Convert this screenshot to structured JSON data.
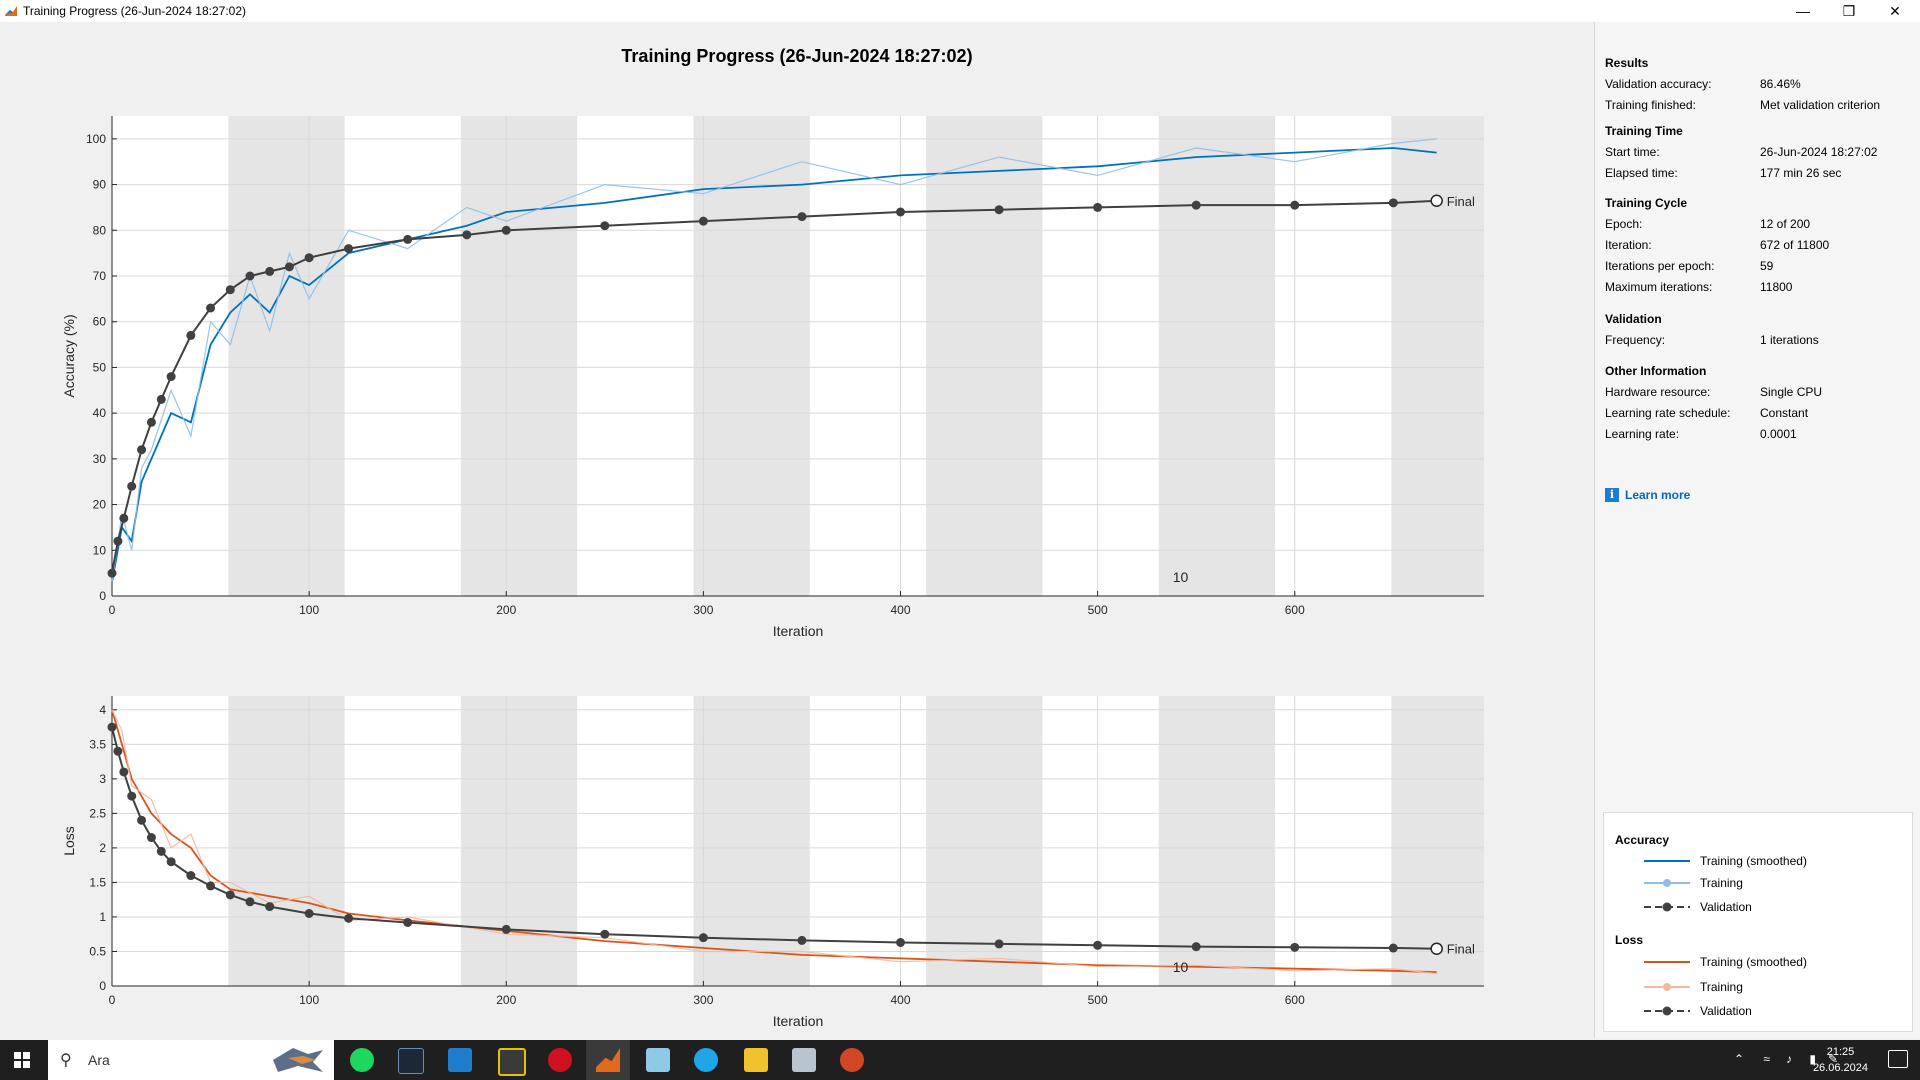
{
  "window": {
    "title": "Training Progress (26-Jun-2024 18:27:02)"
  },
  "figure_title": "Training Progress (26-Jun-2024 18:27:02)",
  "chart_data": [
    {
      "type": "line",
      "name": "accuracy",
      "title": "",
      "xlabel": "Iteration",
      "ylabel": "Accuracy (%)",
      "xlim": [
        0,
        696
      ],
      "ylim": [
        0,
        105
      ],
      "xticks": [
        0,
        100,
        200,
        300,
        400,
        500,
        600
      ],
      "yticks": [
        0,
        10,
        20,
        30,
        40,
        50,
        60,
        70,
        80,
        90,
        100
      ],
      "ytick_labels": [
        "0",
        "10",
        "20",
        "30",
        "40",
        "50",
        "60",
        "70",
        "80",
        "90",
        "100"
      ],
      "grid": true,
      "epoch_iterations": 59,
      "epoch_label": "10",
      "epoch_label_x": 538,
      "final_label": "Final",
      "series": [
        {
          "name": "Training (smoothed)",
          "color": "#0072bd",
          "x": [
            0,
            5,
            10,
            15,
            20,
            30,
            40,
            50,
            60,
            70,
            80,
            90,
            100,
            120,
            150,
            180,
            200,
            250,
            300,
            350,
            400,
            450,
            500,
            550,
            600,
            650,
            672
          ],
          "y": [
            3,
            15,
            12,
            25,
            30,
            40,
            38,
            55,
            62,
            66,
            62,
            70,
            68,
            75,
            78,
            81,
            84,
            86,
            89,
            90,
            92,
            93,
            94,
            96,
            97,
            98,
            97
          ]
        },
        {
          "name": "Training",
          "color": "#8fbfe6",
          "x": [
            0,
            5,
            10,
            15,
            20,
            30,
            40,
            50,
            60,
            70,
            80,
            90,
            100,
            120,
            150,
            180,
            200,
            250,
            300,
            350,
            400,
            450,
            500,
            550,
            600,
            650,
            672
          ],
          "y": [
            3,
            18,
            10,
            28,
            32,
            45,
            35,
            60,
            55,
            70,
            58,
            75,
            65,
            80,
            76,
            85,
            82,
            90,
            88,
            95,
            90,
            96,
            92,
            98,
            95,
            99,
            100
          ]
        },
        {
          "name": "Validation",
          "color": "#404040",
          "x": [
            0,
            3,
            6,
            10,
            15,
            20,
            25,
            30,
            40,
            50,
            60,
            70,
            80,
            90,
            100,
            120,
            150,
            180,
            200,
            250,
            300,
            350,
            400,
            450,
            500,
            550,
            600,
            650,
            672
          ],
          "y": [
            5,
            12,
            17,
            24,
            32,
            38,
            43,
            48,
            57,
            63,
            67,
            70,
            71,
            72,
            74,
            76,
            78,
            79,
            80,
            81,
            82,
            83,
            84,
            84.5,
            85,
            85.5,
            85.5,
            86,
            86.46
          ]
        }
      ]
    },
    {
      "type": "line",
      "name": "loss",
      "title": "",
      "xlabel": "Iteration",
      "ylabel": "Loss",
      "xlim": [
        0,
        696
      ],
      "ylim": [
        0,
        4.2
      ],
      "xticks": [
        0,
        100,
        200,
        300,
        400,
        500,
        600
      ],
      "yticks": [
        0,
        0.5,
        1,
        1.5,
        2,
        2.5,
        3,
        3.5,
        4
      ],
      "ytick_labels": [
        "0",
        "0.5",
        "1",
        "1.5",
        "2",
        "2.5",
        "3",
        "3.5",
        "4"
      ],
      "grid": true,
      "epoch_iterations": 59,
      "epoch_label": "10",
      "epoch_label_x": 538,
      "final_label": "Final",
      "series": [
        {
          "name": "Training (smoothed)",
          "color": "#d95319",
          "x": [
            0,
            5,
            10,
            20,
            30,
            40,
            50,
            60,
            80,
            100,
            120,
            150,
            200,
            250,
            300,
            350,
            400,
            450,
            500,
            550,
            600,
            650,
            672
          ],
          "y": [
            4.0,
            3.5,
            3.0,
            2.5,
            2.2,
            2.0,
            1.6,
            1.4,
            1.3,
            1.2,
            1.05,
            0.95,
            0.8,
            0.65,
            0.55,
            0.45,
            0.4,
            0.35,
            0.3,
            0.28,
            0.25,
            0.22,
            0.2
          ]
        },
        {
          "name": "Training",
          "color": "#f2b8a0",
          "x": [
            0,
            5,
            10,
            20,
            30,
            40,
            50,
            60,
            80,
            100,
            120,
            150,
            200,
            250,
            300,
            350,
            400,
            450,
            500,
            550,
            600,
            650,
            672
          ],
          "y": [
            4.0,
            3.7,
            2.9,
            2.7,
            2.0,
            2.2,
            1.5,
            1.5,
            1.2,
            1.3,
            0.95,
            1.0,
            0.75,
            0.7,
            0.5,
            0.5,
            0.35,
            0.4,
            0.28,
            0.3,
            0.22,
            0.25,
            0.18
          ]
        },
        {
          "name": "Validation",
          "color": "#404040",
          "x": [
            0,
            3,
            6,
            10,
            15,
            20,
            25,
            30,
            40,
            50,
            60,
            70,
            80,
            100,
            120,
            150,
            200,
            250,
            300,
            350,
            400,
            450,
            500,
            550,
            600,
            650,
            672
          ],
          "y": [
            3.75,
            3.4,
            3.1,
            2.75,
            2.4,
            2.15,
            1.95,
            1.8,
            1.6,
            1.45,
            1.32,
            1.22,
            1.15,
            1.05,
            0.98,
            0.92,
            0.82,
            0.75,
            0.7,
            0.66,
            0.63,
            0.61,
            0.59,
            0.57,
            0.56,
            0.55,
            0.54
          ]
        }
      ]
    }
  ],
  "panel": {
    "results": {
      "heading": "Results",
      "rows": [
        {
          "k": "Validation accuracy:",
          "v": "86.46%"
        },
        {
          "k": "Training finished:",
          "v": "Met validation criterion"
        }
      ]
    },
    "time": {
      "heading": "Training Time",
      "rows": [
        {
          "k": "Start time:",
          "v": "26-Jun-2024 18:27:02"
        },
        {
          "k": "Elapsed time:",
          "v": "177 min 26 sec"
        }
      ]
    },
    "cycle": {
      "heading": "Training Cycle",
      "rows": [
        {
          "k": "Epoch:",
          "v": "12 of 200"
        },
        {
          "k": "Iteration:",
          "v": "672 of 11800"
        },
        {
          "k": "Iterations per epoch:",
          "v": "59"
        },
        {
          "k": "Maximum iterations:",
          "v": "11800"
        }
      ]
    },
    "validation": {
      "heading": "Validation",
      "rows": [
        {
          "k": "Frequency:",
          "v": "1 iterations"
        }
      ]
    },
    "other": {
      "heading": "Other Information",
      "rows": [
        {
          "k": "Hardware resource:",
          "v": "Single CPU"
        },
        {
          "k": "Learning rate schedule:",
          "v": "Constant"
        },
        {
          "k": "Learning rate:",
          "v": "0.0001"
        }
      ]
    },
    "learn_more": "Learn more"
  },
  "legend": {
    "accuracy_heading": "Accuracy",
    "loss_heading": "Loss",
    "acc_items": [
      "Training (smoothed)",
      "Training",
      "Validation"
    ],
    "loss_items": [
      "Training (smoothed)",
      "Training",
      "Validation"
    ],
    "acc_colors": [
      "#0072bd",
      "#8fbfe6",
      "#404040"
    ],
    "loss_colors": [
      "#d95319",
      "#f2b8a0",
      "#404040"
    ]
  },
  "taskbar": {
    "search_placeholder": "Ara",
    "time": "21:25",
    "date": "26.06.2024"
  }
}
